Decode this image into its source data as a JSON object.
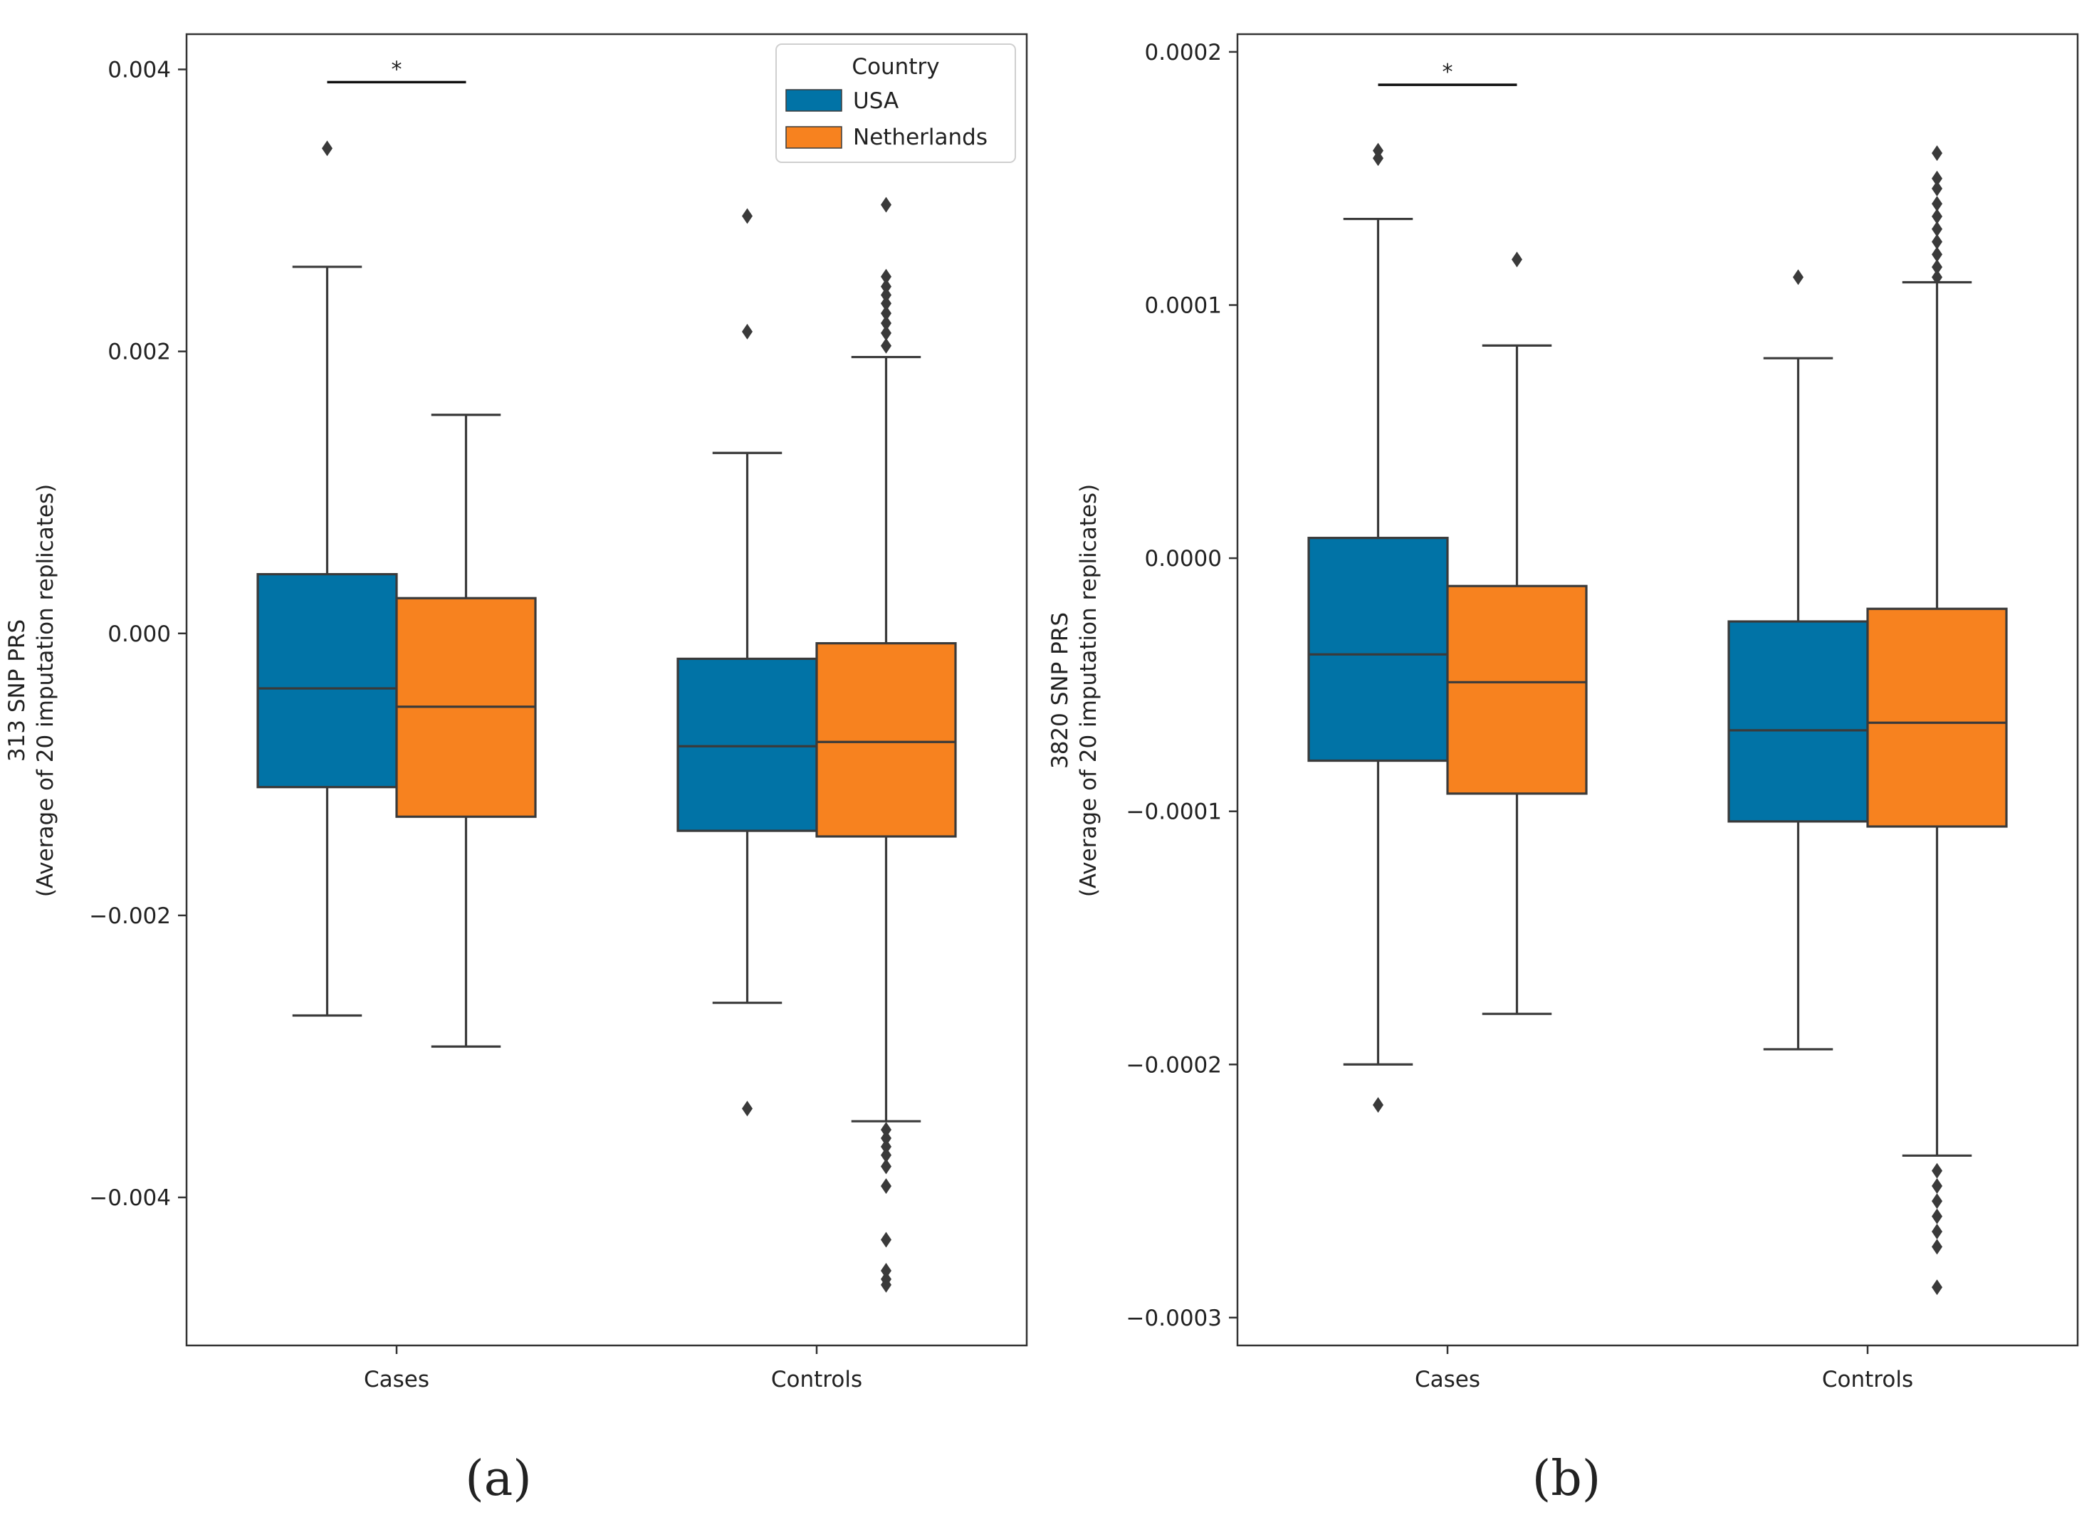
{
  "figure": {
    "legend": {
      "title": "Country",
      "entries": [
        "USA",
        "Netherlands"
      ]
    },
    "colors": {
      "USA": "#0173a6",
      "Netherlands": "#f7821f",
      "line": "#3a3a3a",
      "frame": "#333333"
    }
  },
  "chart_data": [
    {
      "type": "box",
      "panel_label": "(a)",
      "title": "",
      "xlabel": "",
      "ylabel": "313 SNP PRS",
      "ylabel_sub": "(Average of 20 imputation replicates)",
      "categories": [
        "Cases",
        "Controls"
      ],
      "ylim": [
        -0.00505,
        0.00425
      ],
      "yticks": [
        0.004,
        0.002,
        0.0,
        -0.002,
        -0.004
      ],
      "ytick_labels": [
        "0.004",
        "0.002",
        "0.000",
        "−0.002",
        "−0.004"
      ],
      "legend_location": "upper right",
      "series": [
        {
          "name": "USA",
          "boxes": [
            {
              "category": "Cases",
              "whisker_low": -0.00271,
              "q1": -0.00109,
              "median": -0.00039,
              "q3": 0.00042,
              "whisker_high": 0.0026,
              "outliers": [
                0.00344
              ]
            },
            {
              "category": "Controls",
              "whisker_low": -0.00262,
              "q1": -0.0014,
              "median": -0.0008,
              "q3": -0.00018,
              "whisker_high": 0.00128,
              "outliers": [
                0.00296,
                0.00214,
                -0.00337
              ]
            }
          ]
        },
        {
          "name": "Netherlands",
          "boxes": [
            {
              "category": "Cases",
              "whisker_low": -0.00293,
              "q1": -0.0013,
              "median": -0.00052,
              "q3": 0.00025,
              "whisker_high": 0.00155,
              "outliers": []
            },
            {
              "category": "Controls",
              "whisker_low": -0.00346,
              "q1": -0.00144,
              "median": -0.00077,
              "q3": -7e-05,
              "whisker_high": 0.00196,
              "outliers": [
                0.00304,
                0.00253,
                0.00246,
                0.0024,
                0.00234,
                0.00227,
                0.0022,
                0.00213,
                0.00204,
                -0.00352,
                -0.00358,
                -0.00364,
                -0.0037,
                -0.00378,
                -0.00392,
                -0.0043,
                -0.00452,
                -0.00458,
                -0.00462
              ]
            }
          ]
        }
      ],
      "annotations": [
        {
          "text": "*",
          "category": "Cases",
          "y": 0.00391
        }
      ]
    },
    {
      "type": "box",
      "panel_label": "(b)",
      "title": "",
      "xlabel": "",
      "ylabel": "3820 SNP PRS",
      "ylabel_sub": "(Average of 20 imputation replicates)",
      "categories": [
        "Cases",
        "Controls"
      ],
      "ylim": [
        -0.000311,
        0.000207
      ],
      "yticks": [
        0.0002,
        0.0001,
        0.0,
        -0.0001,
        -0.0002,
        -0.0003
      ],
      "ytick_labels": [
        "0.0002",
        "0.0001",
        "0.0000",
        "−0.0001",
        "−0.0002",
        "−0.0003"
      ],
      "legend_location": "",
      "series": [
        {
          "name": "USA",
          "boxes": [
            {
              "category": "Cases",
              "whisker_low": -0.0002,
              "q1": -8e-05,
              "median": -3.8e-05,
              "q3": 8e-06,
              "whisker_high": 0.000134,
              "outliers": [
                0.000161,
                0.000158,
                -0.000216
              ]
            },
            {
              "category": "Controls",
              "whisker_low": -0.000194,
              "q1": -0.000104,
              "median": -6.8e-05,
              "q3": -2.5e-05,
              "whisker_high": 7.9e-05,
              "outliers": [
                0.000111
              ]
            }
          ]
        },
        {
          "name": "Netherlands",
          "boxes": [
            {
              "category": "Cases",
              "whisker_low": -0.00018,
              "q1": -9.3e-05,
              "median": -4.9e-05,
              "q3": -1.1e-05,
              "whisker_high": 8.4e-05,
              "outliers": [
                0.000118
              ]
            },
            {
              "category": "Controls",
              "whisker_low": -0.000236,
              "q1": -0.000106,
              "median": -6.5e-05,
              "q3": -2e-05,
              "whisker_high": 0.000109,
              "outliers": [
                0.00016,
                0.00015,
                0.000146,
                0.00014,
                0.000135,
                0.00013,
                0.000125,
                0.00012,
                0.000115,
                0.000111,
                -0.000242,
                -0.000248,
                -0.000254,
                -0.00026,
                -0.000266,
                -0.000272,
                -0.000288
              ]
            }
          ]
        }
      ],
      "annotations": [
        {
          "text": "*",
          "category": "Cases",
          "y": 0.000187
        }
      ]
    }
  ]
}
